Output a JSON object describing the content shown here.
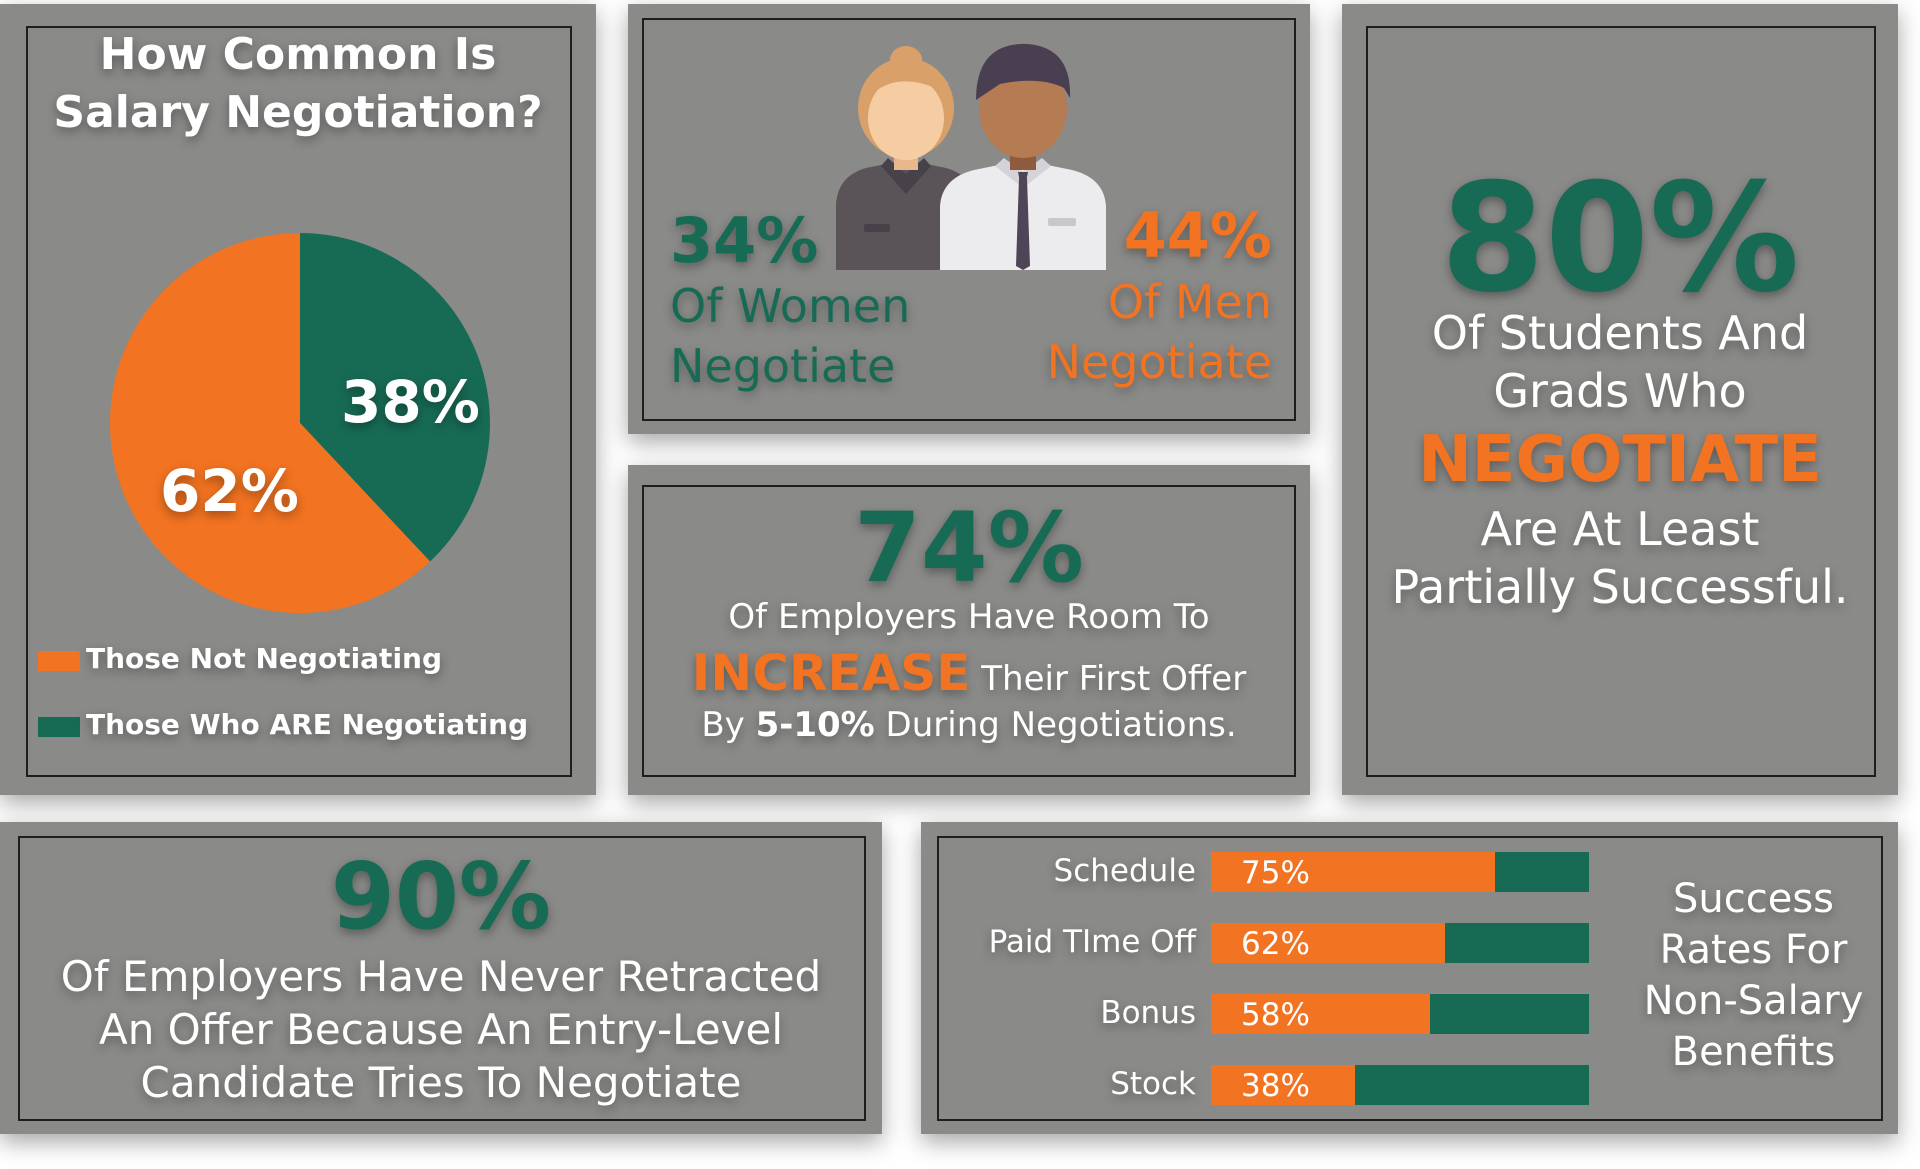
{
  "colors": {
    "panel_bg": "#8a8a88",
    "green": "#176b55",
    "orange": "#f27321",
    "text": "#ffffff"
  },
  "pie_panel": {
    "title_line1": "How Common Is",
    "title_line2": "Salary Negotiation?",
    "label_not": "62%",
    "label_are": "38%",
    "legend_not": "Those Not Negotiating",
    "legend_are": "Those Who ARE Negotiating"
  },
  "gender_panel": {
    "women_pct": "34%",
    "women_line1": "Of Women",
    "women_line2": "Negotiate",
    "men_pct": "44%",
    "men_line1": "Of Men",
    "men_line2": "Negotiate",
    "icon_women": "woman-avatar-icon",
    "icon_men": "man-avatar-icon"
  },
  "employers_room_panel": {
    "pct": "74%",
    "line1": "Of Employers Have Room To",
    "highlight": "INCREASE",
    "line2_rest": " Their First Offer",
    "line3_pre": "By ",
    "line3_bold": "5-10%",
    "line3_post": " During Negotiations."
  },
  "students_panel": {
    "pct": "80%",
    "line1": "Of Students And",
    "line2": "Grads Who",
    "highlight": "NEGOTIATE",
    "line3": "Are At Least",
    "line4": "Partially Successful."
  },
  "retract_panel": {
    "pct": "90%",
    "line1": "Of Employers Have Never Retracted",
    "line2": "An Offer Because An Entry-Level",
    "line3": "Candidate Tries To Negotiate"
  },
  "benefits_panel": {
    "title_line1": "Success",
    "title_line2": "Rates For",
    "title_line3": "Non-Salary",
    "title_line4": "Benefits"
  },
  "chart_data": [
    {
      "type": "pie",
      "title": "How Common Is Salary Negotiation?",
      "categories": [
        "Those Not Negotiating",
        "Those Who ARE Negotiating"
      ],
      "values": [
        62,
        38
      ],
      "colors": [
        "#f27321",
        "#176b55"
      ],
      "legend": "bottom-left"
    },
    {
      "type": "bar",
      "orientation": "horizontal",
      "title": "Success Rates For Non-Salary Benefits",
      "categories": [
        "Schedule",
        "Paid TIme Off",
        "Bonus",
        "Stock"
      ],
      "values": [
        75,
        62,
        58,
        38
      ],
      "labels": [
        "75%",
        "62%",
        "58%",
        "38%"
      ],
      "xlim": [
        0,
        100
      ]
    }
  ]
}
